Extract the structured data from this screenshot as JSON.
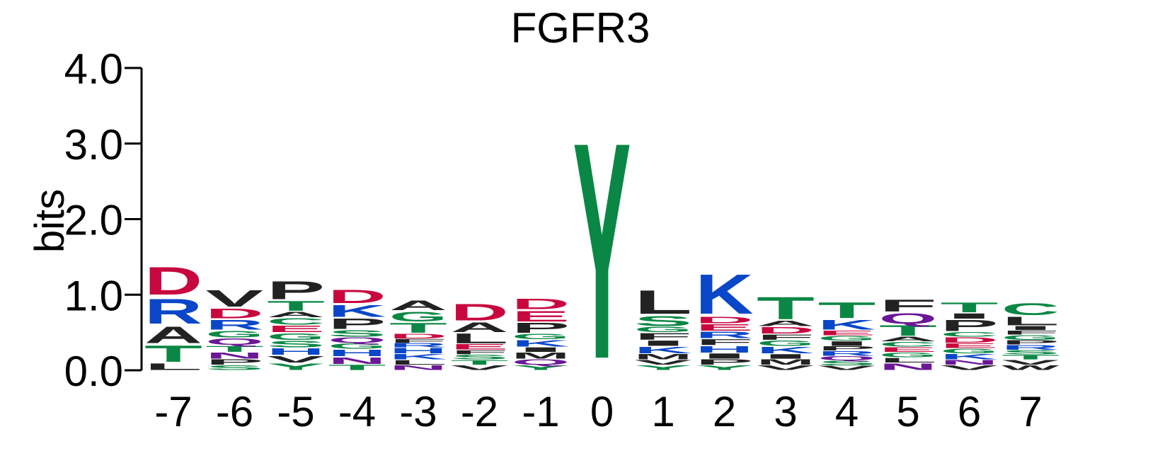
{
  "colors": {
    "hydrophobic": "#222222",
    "polar": "#0a8744",
    "basic": "#0a47c8",
    "acidic": "#c8073f",
    "amide": "#6a1796"
  },
  "chart_data": {
    "type": "sequence-logo",
    "title": "FGFR3",
    "xlabel": "",
    "ylabel": "bits",
    "ylim": [
      0,
      4
    ],
    "yticks": [
      "0.0",
      "1.0",
      "2.0",
      "3.0",
      "4.0"
    ],
    "ytick_values": [
      0,
      1,
      2,
      3,
      4
    ],
    "positions": [
      {
        "label": "-7",
        "stack": [
          {
            "letter": "L",
            "bits": 0.1
          },
          {
            "letter": "T",
            "bits": 0.25
          },
          {
            "letter": "A",
            "bits": 0.25
          },
          {
            "letter": "R",
            "bits": 0.38
          },
          {
            "letter": "D",
            "bits": 0.42
          }
        ]
      },
      {
        "label": "-6",
        "stack": [
          {
            "letter": "S",
            "bits": 0.07
          },
          {
            "letter": "P",
            "bits": 0.08
          },
          {
            "letter": "N",
            "bits": 0.09
          },
          {
            "letter": "T",
            "bits": 0.09
          },
          {
            "letter": "Q",
            "bits": 0.1
          },
          {
            "letter": "G",
            "bits": 0.1
          },
          {
            "letter": "R",
            "bits": 0.15
          },
          {
            "letter": "D",
            "bits": 0.15
          },
          {
            "letter": "V",
            "bits": 0.25
          }
        ]
      },
      {
        "label": "-5",
        "stack": [
          {
            "letter": "Y",
            "bits": 0.1
          },
          {
            "letter": "V",
            "bits": 0.1
          },
          {
            "letter": "H",
            "bits": 0.1
          },
          {
            "letter": "S",
            "bits": 0.1
          },
          {
            "letter": "G",
            "bits": 0.1
          },
          {
            "letter": "E",
            "bits": 0.1
          },
          {
            "letter": "C",
            "bits": 0.1
          },
          {
            "letter": "A",
            "bits": 0.08
          },
          {
            "letter": "T",
            "bits": 0.15
          },
          {
            "letter": "P",
            "bits": 0.27
          }
        ]
      },
      {
        "label": "-4",
        "stack": [
          {
            "letter": "T",
            "bits": 0.08
          },
          {
            "letter": "N",
            "bits": 0.1
          },
          {
            "letter": "H",
            "bits": 0.1
          },
          {
            "letter": "G",
            "bits": 0.08
          },
          {
            "letter": "Q",
            "bits": 0.08
          },
          {
            "letter": "S",
            "bits": 0.1
          },
          {
            "letter": "P",
            "bits": 0.16
          },
          {
            "letter": "K",
            "bits": 0.18
          },
          {
            "letter": "D",
            "bits": 0.2
          }
        ]
      },
      {
        "label": "-3",
        "stack": [
          {
            "letter": "N",
            "bits": 0.07
          },
          {
            "letter": "L",
            "bits": 0.07
          },
          {
            "letter": "K",
            "bits": 0.08
          },
          {
            "letter": "H",
            "bits": 0.08
          },
          {
            "letter": "R",
            "bits": 0.06
          },
          {
            "letter": "F",
            "bits": 0.06
          },
          {
            "letter": "D",
            "bits": 0.07
          },
          {
            "letter": "T",
            "bits": 0.15
          },
          {
            "letter": "G",
            "bits": 0.15
          },
          {
            "letter": "A",
            "bits": 0.15
          }
        ]
      },
      {
        "label": "-2",
        "stack": [
          {
            "letter": "V",
            "bits": 0.07
          },
          {
            "letter": "T",
            "bits": 0.07
          },
          {
            "letter": "S",
            "bits": 0.07
          },
          {
            "letter": "F",
            "bits": 0.06
          },
          {
            "letter": "E",
            "bits": 0.08
          },
          {
            "letter": "L",
            "bits": 0.15
          },
          {
            "letter": "A",
            "bits": 0.15
          },
          {
            "letter": "D",
            "bits": 0.25
          }
        ]
      },
      {
        "label": "-1",
        "stack": [
          {
            "letter": "Y",
            "bits": 0.07
          },
          {
            "letter": "Q",
            "bits": 0.08
          },
          {
            "letter": "M",
            "bits": 0.09
          },
          {
            "letter": "I",
            "bits": 0.07
          },
          {
            "letter": "K",
            "bits": 0.1
          },
          {
            "letter": "G",
            "bits": 0.08
          },
          {
            "letter": "P",
            "bits": 0.15
          },
          {
            "letter": "E",
            "bits": 0.16
          },
          {
            "letter": "D",
            "bits": 0.16
          }
        ]
      },
      {
        "label": "0",
        "stack": [
          {
            "letter": "Y",
            "bits": 3.3
          }
        ]
      },
      {
        "label": "1",
        "stack": [
          {
            "letter": "Y",
            "bits": 0.07
          },
          {
            "letter": "V",
            "bits": 0.07
          },
          {
            "letter": "M",
            "bits": 0.08
          },
          {
            "letter": "K",
            "bits": 0.1
          },
          {
            "letter": "I",
            "bits": 0.08
          },
          {
            "letter": "F",
            "bits": 0.1
          },
          {
            "letter": "G",
            "bits": 0.08
          },
          {
            "letter": "S",
            "bits": 0.15
          },
          {
            "letter": "L",
            "bits": 0.36
          }
        ]
      },
      {
        "label": "2",
        "stack": [
          {
            "letter": "Y",
            "bits": 0.07
          },
          {
            "letter": "P",
            "bits": 0.08
          },
          {
            "letter": "I",
            "bits": 0.08
          },
          {
            "letter": "H",
            "bits": 0.1
          },
          {
            "letter": "F",
            "bits": 0.09
          },
          {
            "letter": "R",
            "bits": 0.1
          },
          {
            "letter": "E",
            "bits": 0.1
          },
          {
            "letter": "D",
            "bits": 0.1
          },
          {
            "letter": "K",
            "bits": 0.6
          }
        ]
      },
      {
        "label": "3",
        "stack": [
          {
            "letter": "V",
            "bits": 0.07
          },
          {
            "letter": "M",
            "bits": 0.08
          },
          {
            "letter": "I",
            "bits": 0.07
          },
          {
            "letter": "K",
            "bits": 0.1
          },
          {
            "letter": "G",
            "bits": 0.08
          },
          {
            "letter": "F",
            "bits": 0.08
          },
          {
            "letter": "D",
            "bits": 0.1
          },
          {
            "letter": "A",
            "bits": 0.08
          },
          {
            "letter": "T",
            "bits": 0.34
          }
        ]
      },
      {
        "label": "4",
        "stack": [
          {
            "letter": "V",
            "bits": 0.06
          },
          {
            "letter": "S",
            "bits": 0.07
          },
          {
            "letter": "Q",
            "bits": 0.06
          },
          {
            "letter": "R",
            "bits": 0.07
          },
          {
            "letter": "P",
            "bits": 0.06
          },
          {
            "letter": "I",
            "bits": 0.07
          },
          {
            "letter": "G",
            "bits": 0.07
          },
          {
            "letter": "E",
            "bits": 0.07
          },
          {
            "letter": "K",
            "bits": 0.15
          },
          {
            "letter": "T",
            "bits": 0.24
          }
        ]
      },
      {
        "label": "5",
        "stack": [
          {
            "letter": "N",
            "bits": 0.1
          },
          {
            "letter": "L",
            "bits": 0.07
          },
          {
            "letter": "G",
            "bits": 0.07
          },
          {
            "letter": "E",
            "bits": 0.07
          },
          {
            "letter": "C",
            "bits": 0.07
          },
          {
            "letter": "A",
            "bits": 0.07
          },
          {
            "letter": "T",
            "bits": 0.16
          },
          {
            "letter": "Q",
            "bits": 0.16
          },
          {
            "letter": "F",
            "bits": 0.18
          }
        ]
      },
      {
        "label": "6",
        "stack": [
          {
            "letter": "V",
            "bits": 0.07
          },
          {
            "letter": "N",
            "bits": 0.07
          },
          {
            "letter": "K",
            "bits": 0.08
          },
          {
            "letter": "G",
            "bits": 0.07
          },
          {
            "letter": "E",
            "bits": 0.07
          },
          {
            "letter": "D",
            "bits": 0.08
          },
          {
            "letter": "C",
            "bits": 0.07
          },
          {
            "letter": "P",
            "bits": 0.17
          },
          {
            "letter": "I",
            "bits": 0.08
          },
          {
            "letter": "T",
            "bits": 0.15
          }
        ]
      },
      {
        "label": "7",
        "stack": [
          {
            "letter": "W",
            "bits": 0.07
          },
          {
            "letter": "V",
            "bits": 0.07
          },
          {
            "letter": "T",
            "bits": 0.07
          },
          {
            "letter": "S",
            "bits": 0.06
          },
          {
            "letter": "R",
            "bits": 0.07
          },
          {
            "letter": "P",
            "bits": 0.06
          },
          {
            "letter": "G",
            "bits": 0.07
          },
          {
            "letter": "F",
            "bits": 0.06
          },
          {
            "letter": "I",
            "bits": 0.06
          },
          {
            "letter": "L",
            "bits": 0.13
          },
          {
            "letter": "C",
            "bits": 0.18
          }
        ]
      }
    ]
  }
}
